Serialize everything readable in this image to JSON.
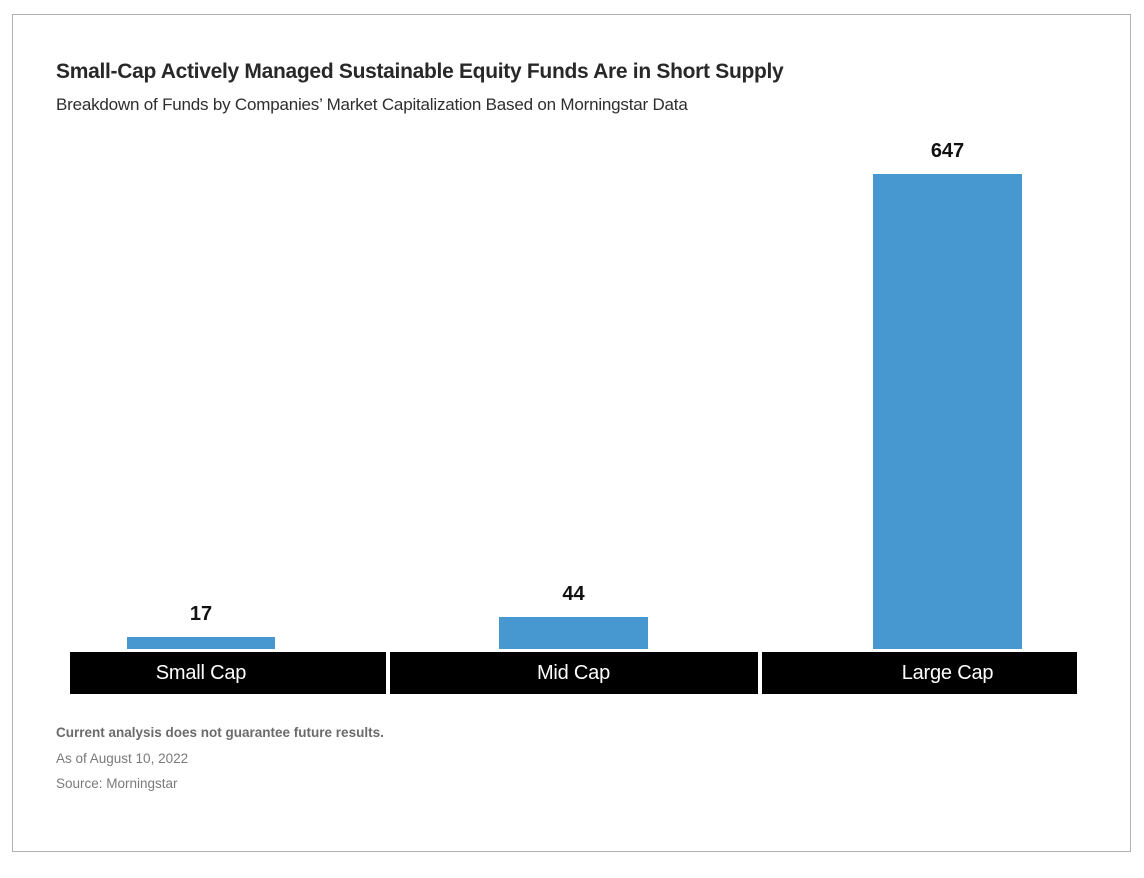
{
  "header": {
    "title": "Small-Cap Actively Managed Sustainable Equity Funds Are in Short Supply",
    "subtitle": "Breakdown of Funds by Companies’ Market Capitalization Based on Morningstar Data"
  },
  "chart_data": {
    "type": "bar",
    "categories": [
      "Small Cap",
      "Mid Cap",
      "Large Cap"
    ],
    "values": [
      17,
      44,
      647
    ],
    "title": "Small-Cap Actively Managed Sustainable Equity Funds Are in Short Supply",
    "subtitle": "Breakdown of Funds by Companies’ Market Capitalization Based on Morningstar Data",
    "xlabel": "",
    "ylabel": "",
    "ylim": [
      0,
      647
    ],
    "grid": false,
    "legend": "none",
    "bar_color": "#4798d1",
    "axis_band_color": "#000000",
    "value_label_color": "#111111"
  },
  "footer": {
    "disclaimer": "Current analysis does not guarantee future results.",
    "as_of": "As of August 10, 2022",
    "source": "Source: Morningstar"
  }
}
